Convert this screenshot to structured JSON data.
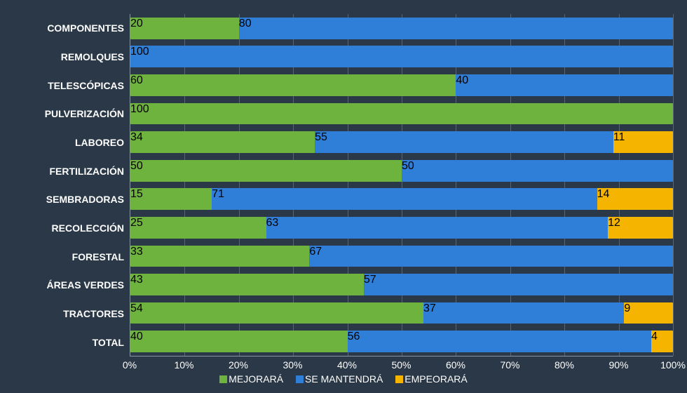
{
  "chart": {
    "type": "stacked-bar-horizontal",
    "background_color": "#2a3847",
    "text_color": "#ffffff",
    "axis_color": "#8a95a3",
    "grid_color": "#5a6573",
    "label_fontsize": 14,
    "label_fontweight": 600,
    "xtick_fontsize": 14,
    "legend_fontsize": 14,
    "bar_height_pct": 76,
    "xlim": [
      0,
      100
    ],
    "xtick_step": 10,
    "xticks": [
      {
        "pos": 0,
        "label": "0%"
      },
      {
        "pos": 10,
        "label": "10%"
      },
      {
        "pos": 20,
        "label": "20%"
      },
      {
        "pos": 30,
        "label": "30%"
      },
      {
        "pos": 40,
        "label": "40%"
      },
      {
        "pos": 50,
        "label": "50%"
      },
      {
        "pos": 60,
        "label": "60%"
      },
      {
        "pos": 70,
        "label": "70%"
      },
      {
        "pos": 80,
        "label": "80%"
      },
      {
        "pos": 90,
        "label": "90%"
      },
      {
        "pos": 100,
        "label": "100%"
      }
    ],
    "series": [
      {
        "key": "mejorara",
        "label": "MEJORARÁ",
        "color": "#6fb33f"
      },
      {
        "key": "se_mantendra",
        "label": "SE MANTENDRÁ",
        "color": "#2f7ed8"
      },
      {
        "key": "empeorara",
        "label": "EMPEORARÁ",
        "color": "#f4b400"
      }
    ],
    "categories": [
      {
        "label": "COMPONENTES",
        "values": {
          "mejorara": 20,
          "se_mantendra": 80,
          "empeorara": 0
        }
      },
      {
        "label": "REMOLQUES",
        "values": {
          "mejorara": 0,
          "se_mantendra": 100,
          "empeorara": 0
        }
      },
      {
        "label": "TELESCÓPICAS",
        "values": {
          "mejorara": 60,
          "se_mantendra": 40,
          "empeorara": 0
        }
      },
      {
        "label": "PULVERIZACIÓN",
        "values": {
          "mejorara": 100,
          "se_mantendra": 0,
          "empeorara": 0
        }
      },
      {
        "label": "LABOREO",
        "values": {
          "mejorara": 34,
          "se_mantendra": 55,
          "empeorara": 11
        }
      },
      {
        "label": "FERTILIZACIÓN",
        "values": {
          "mejorara": 50,
          "se_mantendra": 50,
          "empeorara": 0
        }
      },
      {
        "label": "SEMBRADORAS",
        "values": {
          "mejorara": 15,
          "se_mantendra": 71,
          "empeorara": 14
        }
      },
      {
        "label": "RECOLECCIÓN",
        "values": {
          "mejorara": 25,
          "se_mantendra": 63,
          "empeorara": 12
        }
      },
      {
        "label": "FORESTAL",
        "values": {
          "mejorara": 33,
          "se_mantendra": 67,
          "empeorara": 0
        }
      },
      {
        "label": "ÁREAS VERDES",
        "values": {
          "mejorara": 43,
          "se_mantendra": 57,
          "empeorara": 0
        }
      },
      {
        "label": "TRACTORES",
        "values": {
          "mejorara": 54,
          "se_mantendra": 37,
          "empeorara": 9
        }
      },
      {
        "label": "TOTAL",
        "values": {
          "mejorara": 40,
          "se_mantendra": 56,
          "empeorara": 4
        }
      }
    ]
  }
}
